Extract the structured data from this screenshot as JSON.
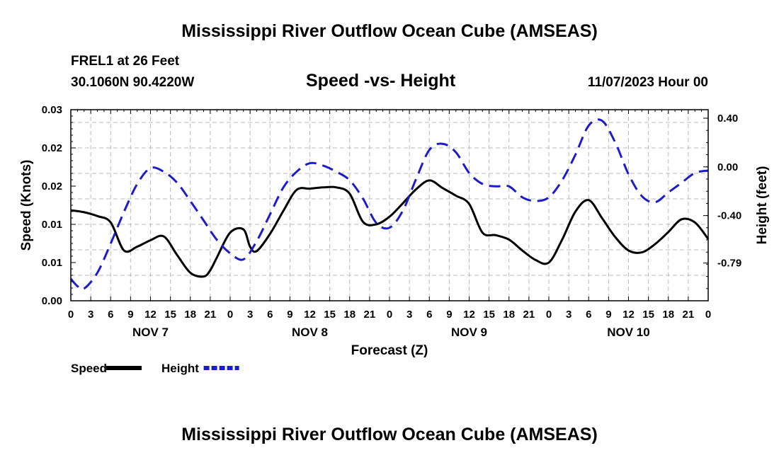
{
  "page": {
    "title": "Mississippi River Outflow Ocean Cube (AMSEAS)",
    "footer_title": "Mississippi River Outflow Ocean Cube (AMSEAS)",
    "station": "FREL1 at 26 Feet",
    "coords": "30.1060N  90.4220W",
    "date": "11/07/2023 Hour 00"
  },
  "chart_data": {
    "type": "line",
    "title": "Speed -vs- Height",
    "xlabel": "Forecast (Z)",
    "ylabel": "Speed (Knots)",
    "y2label": "Height (feet)",
    "x_unit": "hours since 11/07/2023 00Z",
    "xlim": [
      0,
      96
    ],
    "ylim": [
      0,
      0.03
    ],
    "y2lim": [
      -1.1,
      0.47
    ],
    "grid": true,
    "legend_position": "bottom-left",
    "x_tick_hours": [
      0,
      3,
      6,
      9,
      12,
      15,
      18,
      21,
      24,
      27,
      30,
      33,
      36,
      39,
      42,
      45,
      48,
      51,
      54,
      57,
      60,
      63,
      66,
      69,
      72,
      75,
      78,
      81,
      84,
      87,
      90,
      93,
      96
    ],
    "x_tick_labels": [
      "0",
      "3",
      "6",
      "9",
      "12",
      "15",
      "18",
      "21",
      "0",
      "3",
      "6",
      "9",
      "12",
      "15",
      "18",
      "21",
      "0",
      "3",
      "6",
      "9",
      "12",
      "15",
      "18",
      "21",
      "0",
      "3",
      "6",
      "9",
      "12",
      "15",
      "18",
      "21",
      "0"
    ],
    "day_labels": [
      {
        "label": "NOV 7",
        "hour": 12
      },
      {
        "label": "NOV 8",
        "hour": 36
      },
      {
        "label": "NOV 9",
        "hour": 60
      },
      {
        "label": "NOV 10",
        "hour": 84
      }
    ],
    "y_ticks": [
      {
        "value": 0.0,
        "label": "0.00"
      },
      {
        "value": 0.006,
        "label": "0.01"
      },
      {
        "value": 0.012,
        "label": "0.01"
      },
      {
        "value": 0.018,
        "label": "0.02"
      },
      {
        "value": 0.024,
        "label": "0.02"
      },
      {
        "value": 0.03,
        "label": "0.03"
      }
    ],
    "y2_ticks": [
      {
        "value": 0.4,
        "label": "0.40"
      },
      {
        "value": 0.0,
        "label": "0.00"
      },
      {
        "value": -0.4,
        "label": "-0.40"
      },
      {
        "value": -0.79,
        "label": "-0.79"
      }
    ],
    "series": [
      {
        "name": "Speed",
        "axis": "left",
        "color": "#000000",
        "style": "solid",
        "x": [
          0,
          2,
          4,
          6,
          8,
          10,
          12,
          14,
          16,
          18,
          20,
          21,
          22,
          24,
          26,
          27,
          28,
          30,
          32,
          34,
          36,
          38,
          40,
          42,
          44,
          46,
          48,
          50,
          52,
          54,
          56,
          58,
          60,
          62,
          64,
          66,
          68,
          70,
          72,
          74,
          76,
          78,
          80,
          82,
          84,
          86,
          88,
          90,
          92,
          94,
          96
        ],
        "values": [
          0.0142,
          0.0139,
          0.0133,
          0.0123,
          0.0079,
          0.0085,
          0.0095,
          0.0101,
          0.0072,
          0.0044,
          0.0038,
          0.0048,
          0.0068,
          0.0107,
          0.0112,
          0.0085,
          0.0078,
          0.0105,
          0.0141,
          0.0174,
          0.0176,
          0.0178,
          0.0178,
          0.0168,
          0.0124,
          0.012,
          0.0132,
          0.0153,
          0.0175,
          0.0189,
          0.0177,
          0.0165,
          0.0152,
          0.0107,
          0.0103,
          0.0096,
          0.0079,
          0.0064,
          0.006,
          0.0096,
          0.014,
          0.0158,
          0.013,
          0.01,
          0.0079,
          0.0076,
          0.0089,
          0.0108,
          0.0128,
          0.0123,
          0.0097
        ]
      },
      {
        "name": "Height",
        "axis": "right",
        "color": "#1c1ccc",
        "style": "dashed",
        "x": [
          0,
          1,
          2,
          4,
          6,
          8,
          10,
          12,
          14,
          16,
          18,
          20,
          22,
          24,
          26,
          28,
          30,
          32,
          34,
          36,
          38,
          40,
          42,
          44,
          46,
          48,
          50,
          52,
          54,
          56,
          58,
          60,
          62,
          64,
          66,
          68,
          70,
          72,
          74,
          76,
          78,
          80,
          82,
          84,
          86,
          88,
          90,
          92,
          94,
          96
        ],
        "values": [
          -0.92,
          -0.98,
          -1.0,
          -0.87,
          -0.63,
          -0.37,
          -0.14,
          -0.01,
          -0.04,
          -0.13,
          -0.28,
          -0.44,
          -0.6,
          -0.71,
          -0.76,
          -0.61,
          -0.39,
          -0.17,
          -0.04,
          0.03,
          0.01,
          -0.04,
          -0.11,
          -0.26,
          -0.46,
          -0.5,
          -0.36,
          -0.1,
          0.14,
          0.19,
          0.12,
          -0.05,
          -0.14,
          -0.16,
          -0.16,
          -0.25,
          -0.28,
          -0.25,
          -0.11,
          0.1,
          0.34,
          0.38,
          0.2,
          -0.06,
          -0.24,
          -0.29,
          -0.21,
          -0.13,
          -0.05,
          -0.03
        ]
      }
    ]
  }
}
